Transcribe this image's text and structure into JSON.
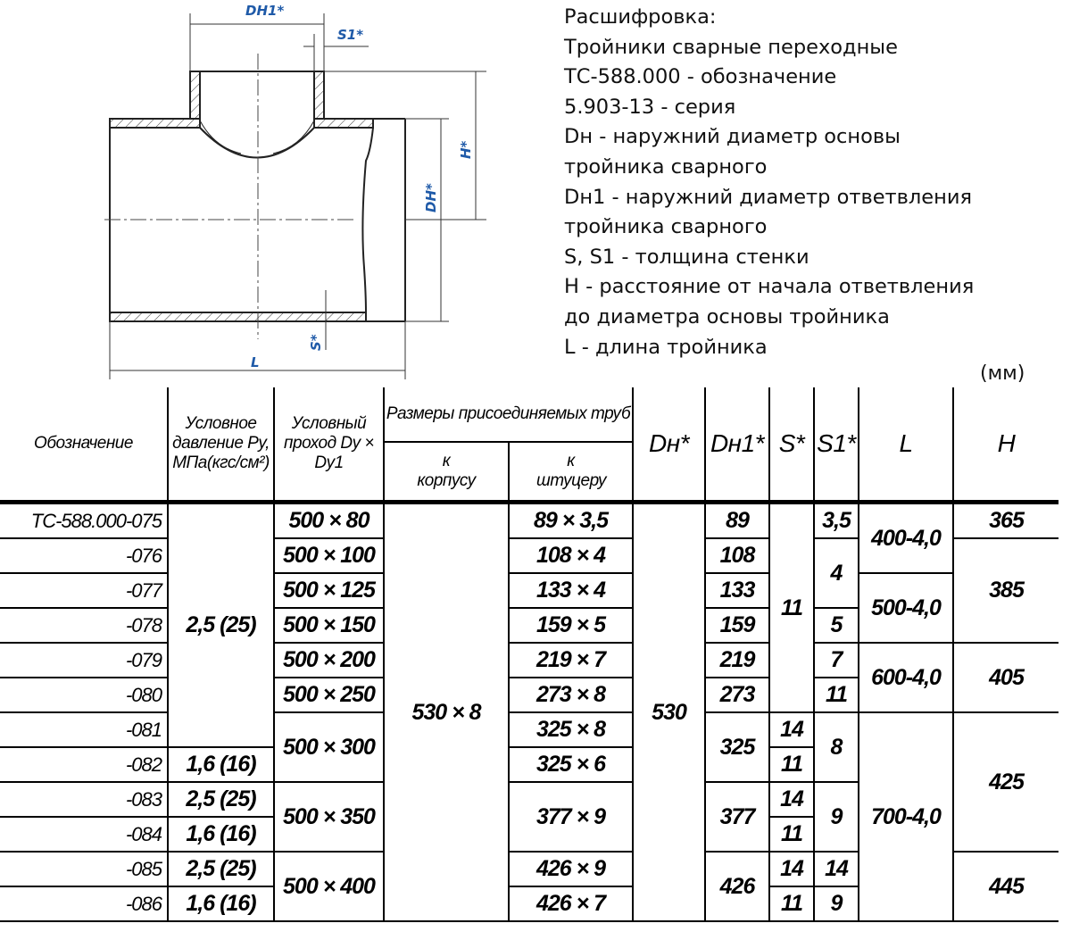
{
  "drawing": {
    "labels": {
      "dh1": "DH1*",
      "s1": "S1*",
      "h": "H*",
      "dh": "DH*",
      "s": "S*",
      "l": "L"
    },
    "accent_color": "#1f5aa8"
  },
  "legend": {
    "lines": [
      "Расшифровка:",
      "Тройники сварные переходные",
      "ТС-588.000 - обозначение",
      "5.903-13 - серия",
      "Dн - наружний диаметр основы",
      "тройника сварного",
      "Dн1 - наружний диаметр ответвления",
      "тройника сварного",
      "S, S1 - толщина стенки",
      "H - расстояние от начала ответвления",
      "до диаметра основы тройника",
      "L - длина тройника"
    ],
    "units": "(мм)"
  },
  "table": {
    "headers": {
      "designation": "Обозначение",
      "pressure": "Условное давление Pу, МПа(кгс/см²)",
      "passage": "Условный проход Dу × Dу1",
      "pipe_sizes": "Размеры присоединяемых труб",
      "to_body": "к корпусу",
      "to_fitting": "к штуцеру",
      "dh": "Dн*",
      "dh1": "Dн1*",
      "s": "S*",
      "s1": "S1*",
      "l": "L",
      "h": "H"
    },
    "designations": [
      "ТС-588.000-075",
      "-076",
      "-077",
      "-078",
      "-079",
      "-080",
      "-081",
      "-082",
      "-083",
      "-084",
      "-085",
      "-086"
    ],
    "pressure": [
      "2,5 (25)",
      "1,6 (16)",
      "2,5 (25)",
      "1,6 (16)",
      "2,5 (25)",
      "1,6 (16)"
    ],
    "passage": [
      "500 × 80",
      "500 × 100",
      "500 × 125",
      "500 × 150",
      "500 × 200",
      "500 × 250",
      "500 × 300",
      "500 × 350",
      "500 × 400"
    ],
    "to_body": "530 × 8",
    "to_fitting": [
      "89 × 3,5",
      "108 × 4",
      "133 × 4",
      "159 × 5",
      "219 × 7",
      "273 × 8",
      "325 × 8",
      "325 × 6",
      "377 × 9",
      "426 × 9",
      "426 × 7"
    ],
    "dh": "530",
    "dh1": [
      "89",
      "108",
      "133",
      "159",
      "219",
      "273",
      "325",
      "377",
      "426"
    ],
    "s": [
      "11",
      "14",
      "11",
      "14",
      "11",
      "14",
      "11"
    ],
    "s1": [
      "3,5",
      "4",
      "5",
      "7",
      "11",
      "8",
      "9",
      "14",
      "9"
    ],
    "l": [
      "400-4,0",
      "500-4,0",
      "600-4,0",
      "700-4,0"
    ],
    "h": [
      "365",
      "385",
      "405",
      "425",
      "445"
    ]
  }
}
